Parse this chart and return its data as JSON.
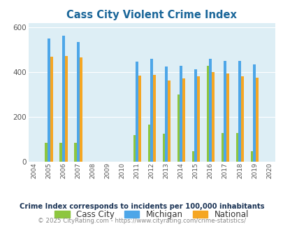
{
  "title": "Cass City Violent Crime Index",
  "title_color": "#1a6699",
  "years": [
    2004,
    2005,
    2006,
    2007,
    2008,
    2009,
    2010,
    2011,
    2012,
    2013,
    2014,
    2015,
    2016,
    2017,
    2018,
    2019,
    2020
  ],
  "cass_city": [
    0,
    83,
    83,
    83,
    0,
    0,
    0,
    120,
    165,
    125,
    300,
    48,
    430,
    128,
    128,
    48,
    0
  ],
  "michigan": [
    0,
    550,
    565,
    535,
    0,
    0,
    0,
    447,
    460,
    427,
    428,
    413,
    460,
    450,
    450,
    435,
    0
  ],
  "national": [
    0,
    470,
    472,
    468,
    0,
    0,
    0,
    385,
    389,
    364,
    372,
    383,
    400,
    395,
    383,
    377,
    0
  ],
  "bar_width": 0.18,
  "colors": {
    "cass_city": "#8dc63f",
    "michigan": "#4da6e8",
    "national": "#f5a623"
  },
  "bg_color": "#ddeef5",
  "ylim": [
    0,
    620
  ],
  "yticks": [
    0,
    200,
    400,
    600
  ],
  "subtitle": "Crime Index corresponds to incidents per 100,000 inhabitants",
  "copyright": "© 2025 CityRating.com - https://www.cityrating.com/crime-statistics/",
  "subtitle_color": "#1a3355",
  "copyright_color": "#888888"
}
